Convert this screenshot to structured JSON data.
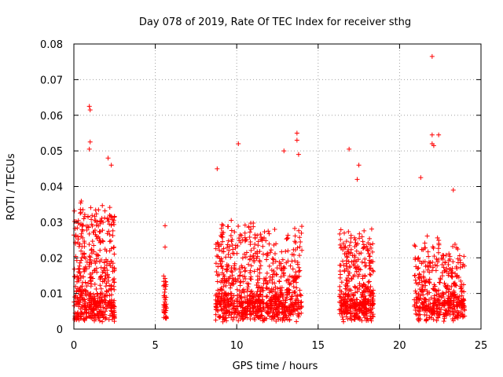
{
  "chart_data": {
    "type": "scatter",
    "title": "Day 078 of 2019, Rate Of TEC Index for receiver sthg",
    "xlabel": "GPS time / hours",
    "ylabel": "ROTI / TECUs",
    "xlim": [
      0,
      25
    ],
    "ylim": [
      0,
      0.08
    ],
    "xticks": [
      "0",
      "5",
      "10",
      "15",
      "20",
      "25"
    ],
    "yticks": [
      "0",
      "0.01",
      "0.02",
      "0.03",
      "0.04",
      "0.05",
      "0.06",
      "0.07",
      "0.08"
    ],
    "grid": true,
    "marker": "+",
    "color": "#ff0000",
    "clusters": [
      {
        "x_range": [
          0.0,
          2.5
        ],
        "base": 0.006,
        "peak": 0.035,
        "count": 520
      },
      {
        "x_range": [
          5.5,
          5.7
        ],
        "base": 0.006,
        "peak": 0.015,
        "count": 40
      },
      {
        "x_range": [
          8.7,
          11.5
        ],
        "base": 0.006,
        "peak": 0.03,
        "count": 520
      },
      {
        "x_range": [
          11.5,
          14.0
        ],
        "base": 0.006,
        "peak": 0.028,
        "count": 380
      },
      {
        "x_range": [
          16.3,
          18.4
        ],
        "base": 0.006,
        "peak": 0.027,
        "count": 420
      },
      {
        "x_range": [
          20.9,
          24.0
        ],
        "base": 0.006,
        "peak": 0.025,
        "count": 460
      }
    ],
    "outliers": [
      {
        "x": 0.95,
        "y": 0.0625
      },
      {
        "x": 1.0,
        "y": 0.0615
      },
      {
        "x": 1.0,
        "y": 0.0525
      },
      {
        "x": 0.95,
        "y": 0.0505
      },
      {
        "x": 2.1,
        "y": 0.048
      },
      {
        "x": 2.3,
        "y": 0.046
      },
      {
        "x": 10.1,
        "y": 0.052
      },
      {
        "x": 8.8,
        "y": 0.045
      },
      {
        "x": 12.9,
        "y": 0.05
      },
      {
        "x": 13.7,
        "y": 0.055
      },
      {
        "x": 13.7,
        "y": 0.053
      },
      {
        "x": 13.8,
        "y": 0.049
      },
      {
        "x": 16.9,
        "y": 0.0505
      },
      {
        "x": 17.5,
        "y": 0.046
      },
      {
        "x": 17.4,
        "y": 0.042
      },
      {
        "x": 22.0,
        "y": 0.0765
      },
      {
        "x": 22.0,
        "y": 0.0545
      },
      {
        "x": 22.0,
        "y": 0.052
      },
      {
        "x": 22.4,
        "y": 0.0545
      },
      {
        "x": 22.1,
        "y": 0.0515
      },
      {
        "x": 21.3,
        "y": 0.0425
      },
      {
        "x": 23.3,
        "y": 0.039
      },
      {
        "x": 5.6,
        "y": 0.029
      },
      {
        "x": 5.6,
        "y": 0.023
      }
    ]
  }
}
